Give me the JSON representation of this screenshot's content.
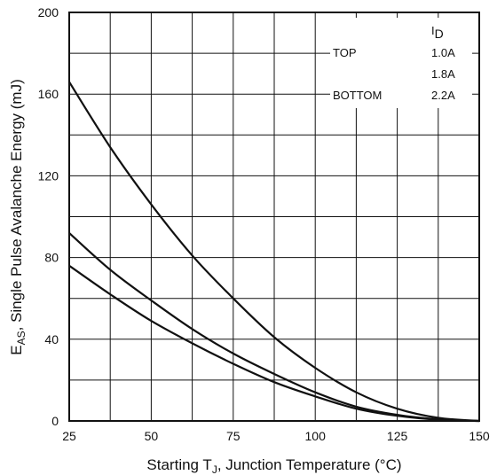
{
  "chart_data": {
    "type": "line",
    "x_label_parts": [
      "Starting T",
      "J",
      ", Junction Temperature (°C)"
    ],
    "y_label_parts": [
      "E",
      "AS",
      ", Single Pulse Avalanche Energy (mJ)"
    ],
    "xlim": [
      25,
      150
    ],
    "ylim": [
      0,
      200
    ],
    "x_ticks": [
      25,
      50,
      75,
      100,
      125,
      150
    ],
    "y_ticks": [
      0,
      40,
      80,
      120,
      160,
      200
    ],
    "grid": true,
    "legend_header_parts": [
      "I",
      "D"
    ],
    "legend_rows": [
      {
        "label": "TOP",
        "value": "1.0A"
      },
      {
        "label": "",
        "value": "1.8A"
      },
      {
        "label": "BOTTOM",
        "value": "2.2A"
      }
    ],
    "series": [
      {
        "x": [
          25,
          37.5,
          50,
          62.5,
          75,
          87.5,
          100,
          112.5,
          125,
          137.5,
          150
        ],
        "y": [
          166,
          134,
          106,
          81,
          60,
          41,
          26,
          14,
          6,
          1.5,
          0
        ]
      },
      {
        "x": [
          25,
          37.5,
          50,
          62.5,
          75,
          87.5,
          100,
          112.5,
          125,
          137.5,
          150
        ],
        "y": [
          92,
          74,
          59,
          45,
          33,
          23,
          14,
          7,
          3,
          0.8,
          0
        ]
      },
      {
        "x": [
          25,
          37.5,
          50,
          62.5,
          75,
          87.5,
          100,
          112.5,
          125,
          137.5,
          150
        ],
        "y": [
          76,
          62,
          49,
          38,
          28,
          19,
          12,
          6,
          2.5,
          0.6,
          0
        ]
      }
    ]
  }
}
